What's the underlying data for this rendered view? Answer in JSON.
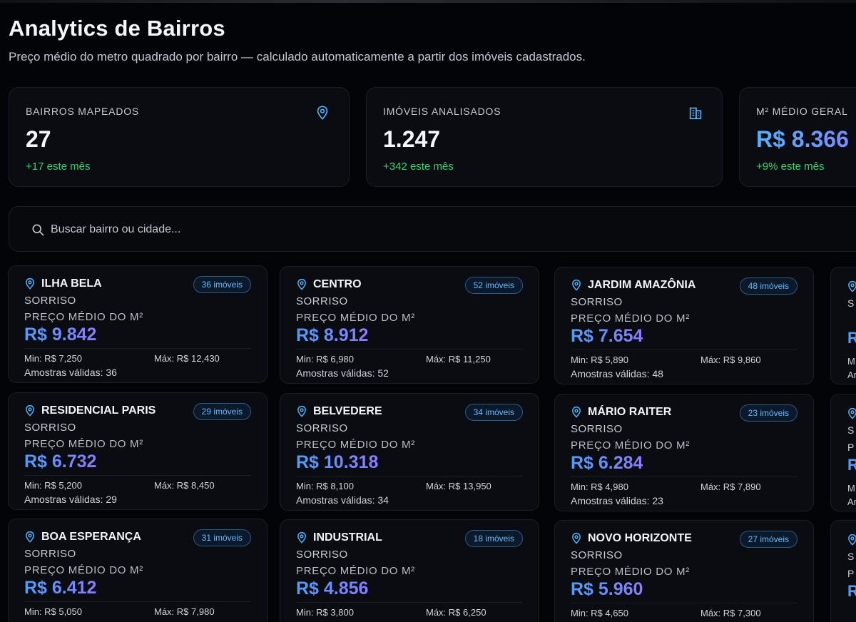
{
  "header": {
    "title": "Analytics de Bairros",
    "subtitle": "Preço médio do metro quadrado por bairro — calculado automaticamente a partir dos imóveis cadastrados."
  },
  "stats": [
    {
      "label": "BAIRROS MAPEADOS",
      "value": "27",
      "delta": "+17 este mês",
      "icon": "map-pin-icon"
    },
    {
      "label": "IMÓVEIS ANALISADOS",
      "value": "1.247",
      "delta": "+342 este mês",
      "icon": "building-icon"
    },
    {
      "label": "M² MÉDIO GERAL",
      "value": "R$ 8.366",
      "delta": "+9% este mês"
    }
  ],
  "search": {
    "placeholder": "Buscar bairro ou cidade...",
    "value": ""
  },
  "price_label": "PREÇO MÉDIO DO M²",
  "cards": [
    {
      "name": "ILHA BELA",
      "badge": "36 imóveis",
      "city": "SORRISO",
      "price": "R$ 9.842",
      "min": "Min: R$ 7,250",
      "max": "Máx: R$ 12,430",
      "samples": "Amostras válidas: 36"
    },
    {
      "name": "CENTRO",
      "badge": "52 imóveis",
      "city": "SORRISO",
      "price": "R$ 8.912",
      "min": "Min: R$ 6,980",
      "max": "Máx: R$ 11,250",
      "samples": "Amostras válidas: 52"
    },
    {
      "name": "JARDIM AMAZÔNIA",
      "badge": "48 imóveis",
      "city": "SORRISO",
      "price": "R$ 7.654",
      "min": "Min: R$ 5,890",
      "max": "Máx: R$ 9,860",
      "samples": "Amostras válidas: 48"
    },
    {
      "name": "RESIDENCIAL PARIS",
      "badge": "29 imóveis",
      "city": "SORRISO",
      "price": "R$ 6.732",
      "min": "Min: R$ 5,200",
      "max": "Máx: R$ 8,450",
      "samples": "Amostras válidas: 29"
    },
    {
      "name": "BELVEDERE",
      "badge": "34 imóveis",
      "city": "SORRISO",
      "price": "R$ 10.318",
      "min": "Min: R$ 8,100",
      "max": "Máx: R$ 13,950",
      "samples": "Amostras válidas: 34"
    },
    {
      "name": "MÁRIO RAITER",
      "badge": "23 imóveis",
      "city": "SORRISO",
      "price": "R$ 6.284",
      "min": "Min: R$ 4,980",
      "max": "Máx: R$ 7,890",
      "samples": "Amostras válidas: 23"
    },
    {
      "name": "BOA ESPERANÇA",
      "badge": "31 imóveis",
      "city": "SORRISO",
      "price": "R$ 6.412",
      "min": "Min: R$ 5,050",
      "max": "Máx: R$ 7,980",
      "samples": ""
    },
    {
      "name": "INDUSTRIAL",
      "badge": "18 imóveis",
      "city": "SORRISO",
      "price": "R$ 4.856",
      "min": "Min: R$ 3,800",
      "max": "Máx: R$ 6,250",
      "samples": ""
    },
    {
      "name": "NOVO HORIZONTE",
      "badge": "27 imóveis",
      "city": "SORRISO",
      "price": "R$ 5.960",
      "min": "Min: R$ 4,650",
      "max": "Máx: R$ 7,300",
      "samples": ""
    }
  ],
  "stub_cards": [
    {
      "city": "S",
      "plabel": "",
      "price": "R",
      "min": "M",
      "samples": "Ar"
    },
    {
      "city": "S",
      "plabel": "P",
      "price": "R",
      "min": "M",
      "samples": "Ar"
    },
    {
      "city": "S",
      "plabel": "P",
      "price": "R",
      "min": "",
      "samples": ""
    }
  ],
  "colors": {
    "accent": "#4fb3ff",
    "positive": "#34d36f",
    "badge": "#68b8ff",
    "background": "#030407",
    "card": "#0a0c11"
  }
}
